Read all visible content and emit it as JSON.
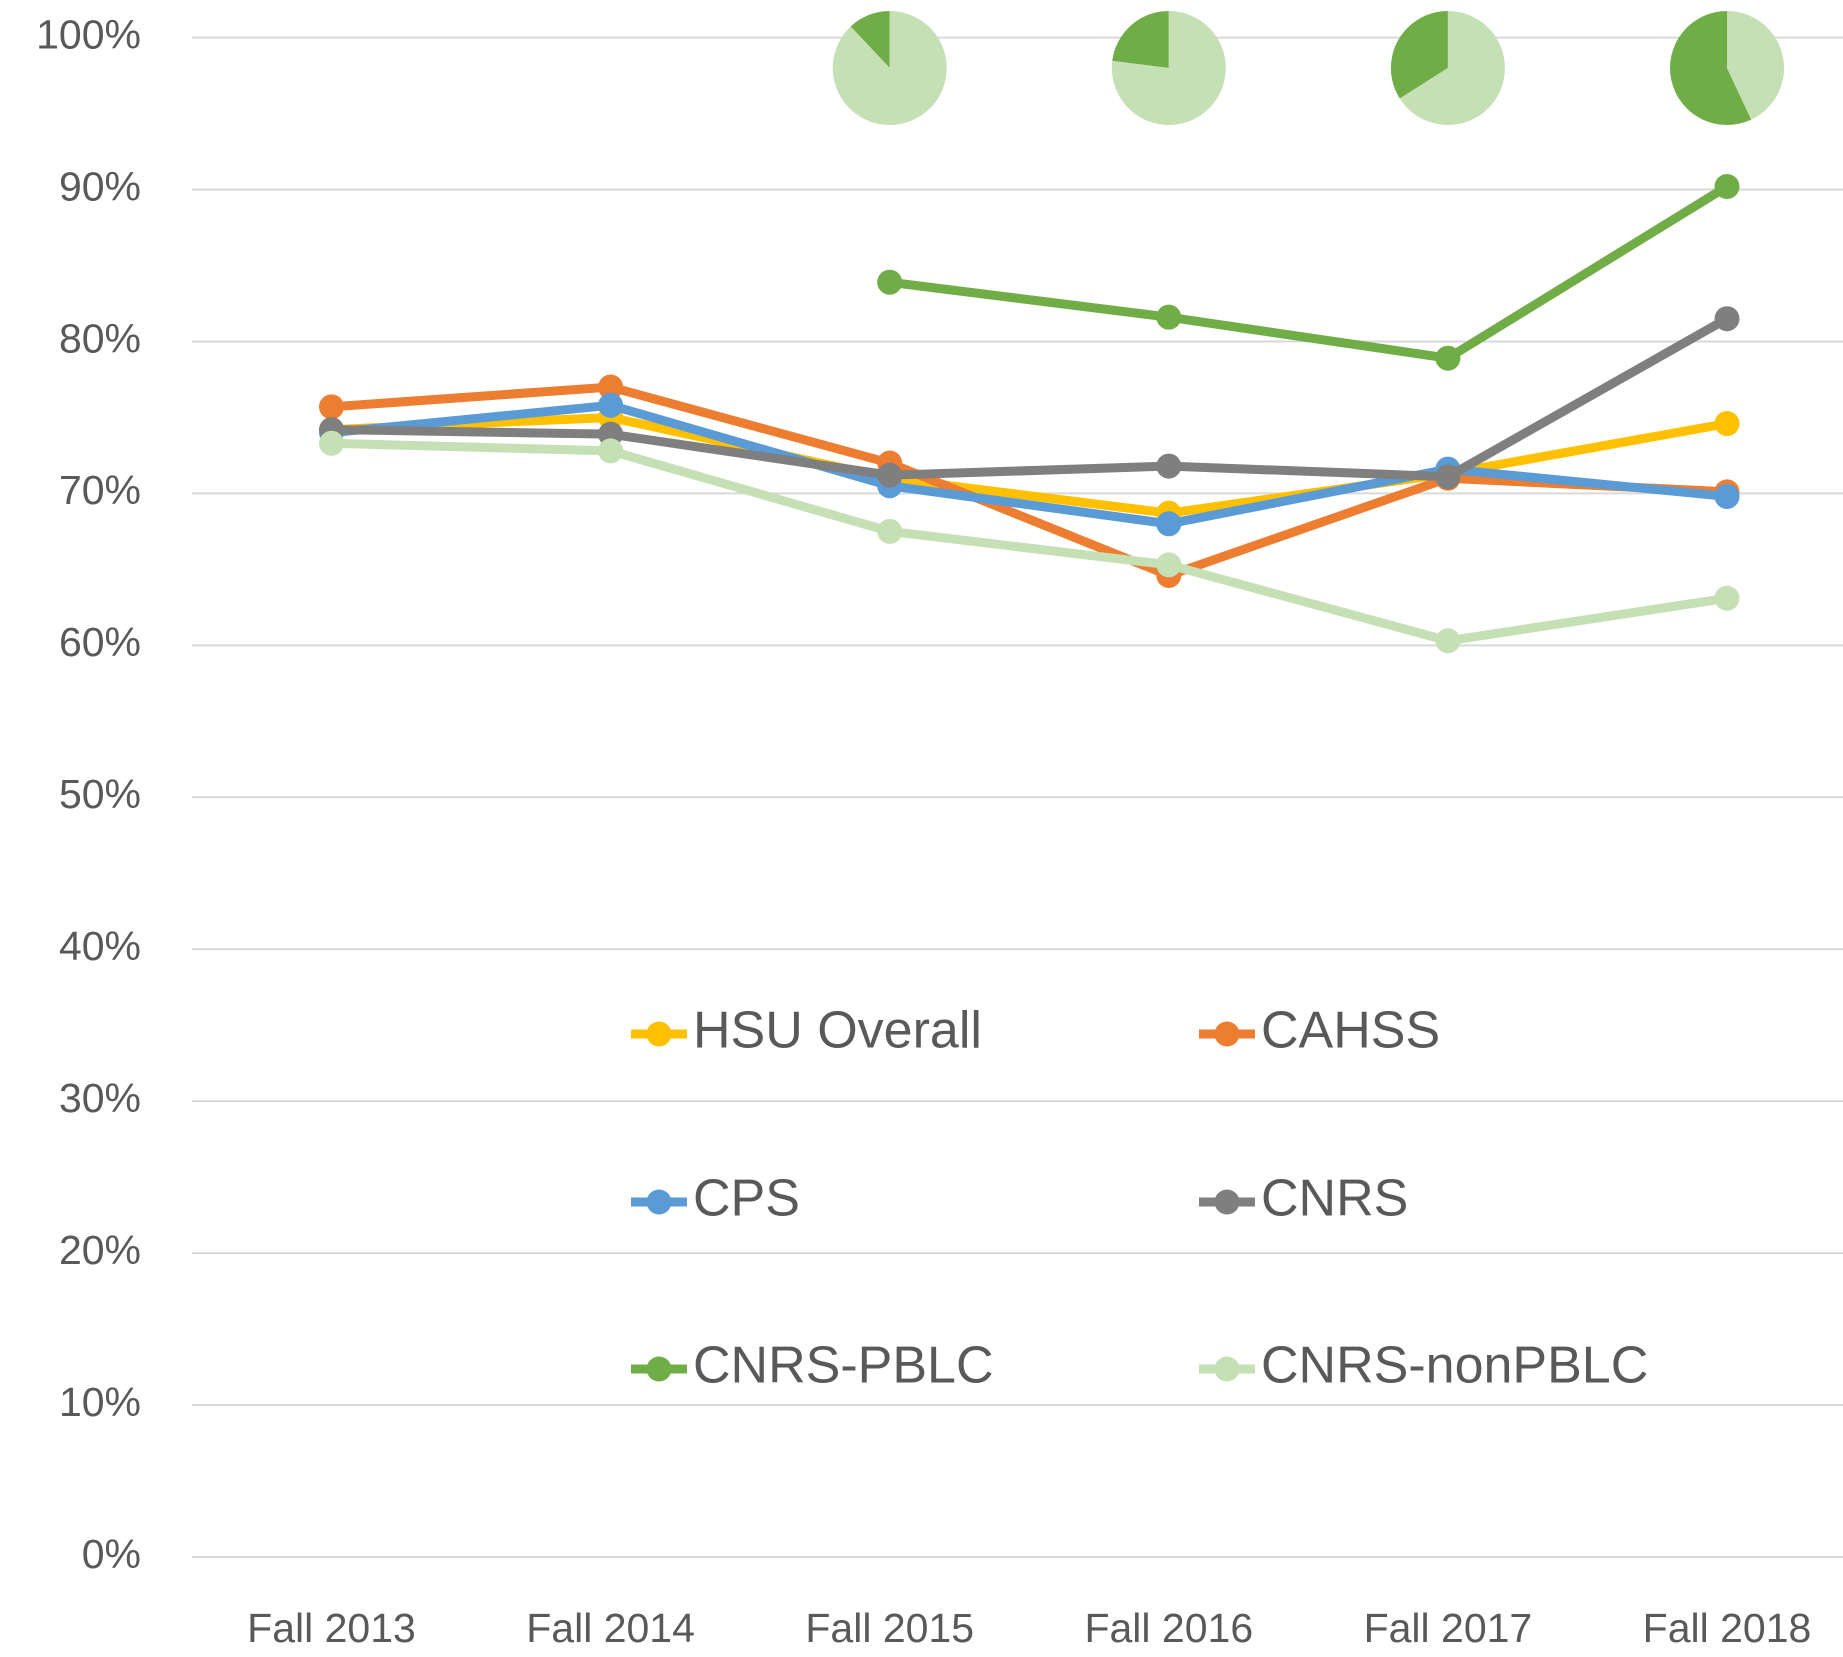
{
  "chart_data": {
    "type": "line",
    "categories": [
      "Fall 2013",
      "Fall 2014",
      "Fall 2015",
      "Fall 2016",
      "Fall 2017",
      "Fall 2018"
    ],
    "series": [
      {
        "name": "HSU Overall",
        "color": "#ffc000",
        "values": [
          74.2,
          75.0,
          71.0,
          68.7,
          71.3,
          74.6
        ]
      },
      {
        "name": "CAHSS",
        "color": "#ed7d31",
        "values": [
          75.7,
          77.0,
          72.0,
          64.6,
          71.0,
          70.1
        ]
      },
      {
        "name": "CPS",
        "color": "#5b9bd5",
        "values": [
          74.0,
          75.8,
          70.5,
          68.0,
          71.6,
          69.8
        ]
      },
      {
        "name": "CNRS",
        "color": "#7f7f7f",
        "values": [
          74.2,
          73.9,
          71.2,
          71.8,
          71.1,
          81.5
        ]
      },
      {
        "name": "CNRS-PBLC",
        "color": "#70ad47",
        "values": [
          null,
          null,
          83.9,
          81.6,
          78.9,
          90.2
        ]
      },
      {
        "name": "CNRS-nonPBLC",
        "color": "#c5e0b4",
        "values": [
          73.3,
          72.8,
          67.5,
          65.3,
          60.3,
          63.1
        ]
      }
    ],
    "pie_series": [
      {
        "color": "#70ad47",
        "values": [
          null,
          null,
          12,
          23,
          34,
          57
        ]
      },
      {
        "color": "#c5e0b4",
        "values": [
          null,
          null,
          88,
          77,
          66,
          43
        ]
      }
    ],
    "ylim": [
      0,
      100
    ],
    "yticks": [
      {
        "value": 0,
        "label": "0%"
      },
      {
        "value": 10,
        "label": "10%"
      },
      {
        "value": 20,
        "label": "20%"
      },
      {
        "value": 30,
        "label": "30%"
      },
      {
        "value": 40,
        "label": "40%"
      },
      {
        "value": 50,
        "label": "50%"
      },
      {
        "value": 60,
        "label": "60%"
      },
      {
        "value": 70,
        "label": "70%"
      },
      {
        "value": 80,
        "label": "80%"
      },
      {
        "value": 90,
        "label": "90%"
      },
      {
        "value": 100,
        "label": "100%"
      }
    ],
    "grid": true
  }
}
